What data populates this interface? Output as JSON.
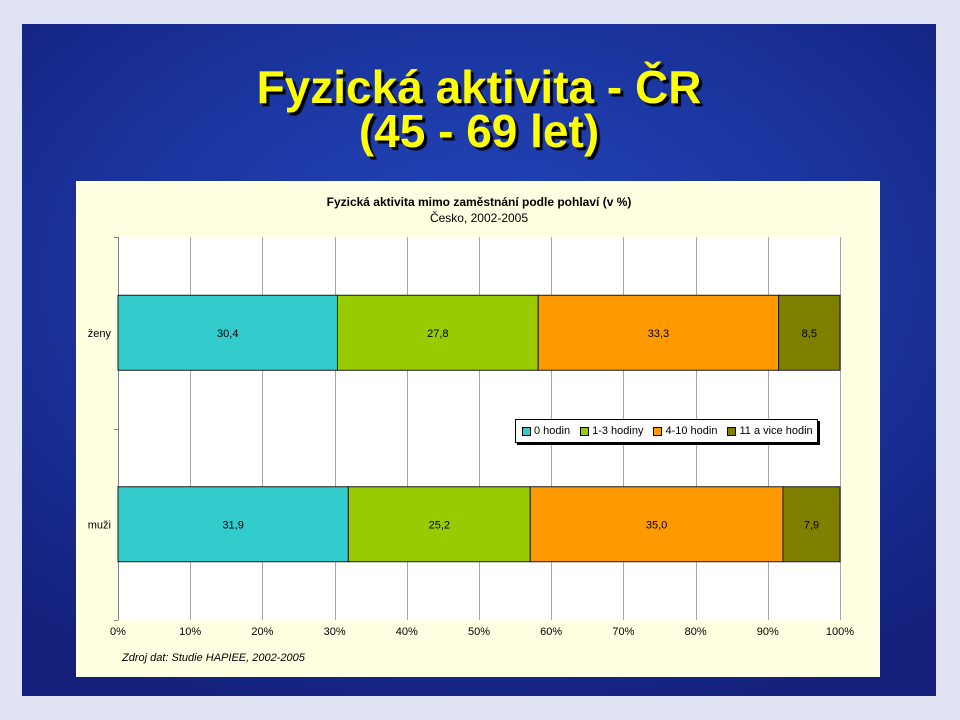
{
  "slide": {
    "title_line1": "Fyzická aktivita - ČR",
    "title_line2": "(45 - 69 let)",
    "colors": {
      "title": "#ffff00",
      "background": "#1c38a4"
    }
  },
  "chart_data": {
    "type": "bar",
    "orientation": "horizontal",
    "stacking": "percent",
    "title": "Fyzická aktivita mimo zaměstnání podle pohlaví (v %)",
    "subtitle": "Česko, 2002-2005",
    "categories": [
      "ženy",
      "muži"
    ],
    "series": [
      {
        "name": "0 hodin",
        "color": "#33cccc",
        "values": [
          30.4,
          31.9
        ]
      },
      {
        "name": "1-3 hodiny",
        "color": "#99cc00",
        "values": [
          27.8,
          25.2
        ]
      },
      {
        "name": "4-10 hodin",
        "color": "#ff9900",
        "values": [
          33.3,
          35.0
        ]
      },
      {
        "name": "11 a vice hodin",
        "color": "#808000",
        "values": [
          8.5,
          7.9
        ]
      }
    ],
    "xlim": [
      0,
      100
    ],
    "xticks": [
      "0%",
      "10%",
      "20%",
      "30%",
      "40%",
      "50%",
      "60%",
      "70%",
      "80%",
      "90%",
      "100%"
    ],
    "grid": true,
    "data_labels": true,
    "legend": "center-right",
    "panel_background": "#ffffe1",
    "plot_background": "#ffffff",
    "source": "Zdroj dat: Studie HAPIEE, 2002-2005"
  }
}
